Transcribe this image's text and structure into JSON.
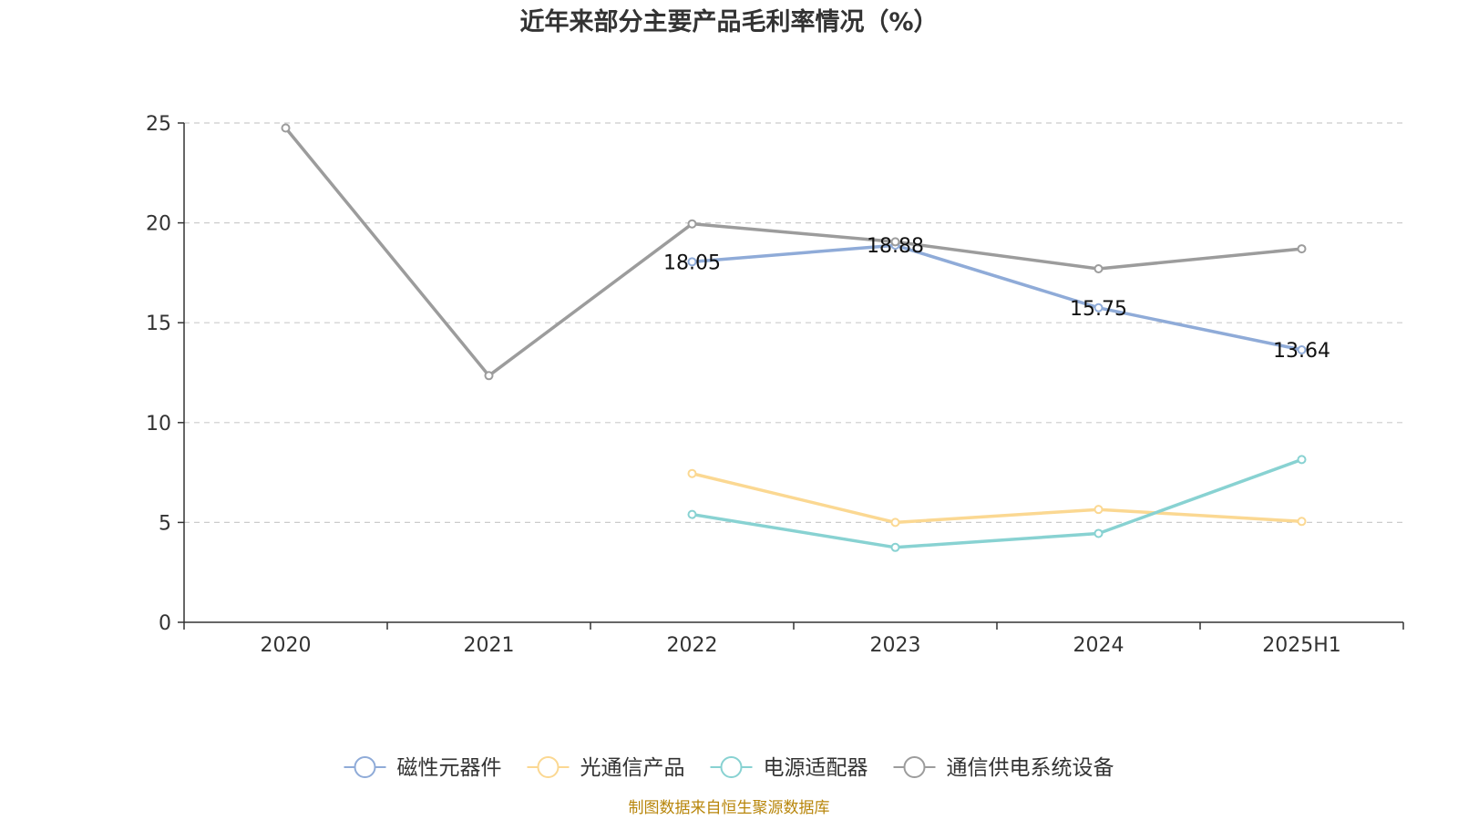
{
  "chart_data": {
    "type": "line",
    "title": "近年来部分主要产品毛利率情况（%）",
    "xlabel": "",
    "ylabel": "",
    "categories": [
      "2020",
      "2021",
      "2022",
      "2023",
      "2024",
      "2025H1"
    ],
    "y_ticks": [
      "0",
      "5",
      "10",
      "15",
      "20",
      "25"
    ],
    "ylim": [
      0,
      25
    ],
    "grid": true,
    "legend_position": "bottom",
    "series": [
      {
        "name": "磁性元器件",
        "color": "#8fabd8",
        "values": [
          null,
          null,
          18.05,
          18.88,
          15.75,
          13.64
        ],
        "data_labels": [
          null,
          null,
          "18.05",
          "18.88",
          "15.75",
          "13.64"
        ]
      },
      {
        "name": "光通信产品",
        "color": "#fbd892",
        "values": [
          null,
          null,
          7.45,
          5.0,
          5.65,
          5.05
        ]
      },
      {
        "name": "电源适配器",
        "color": "#88d2d2",
        "values": [
          null,
          null,
          5.4,
          3.75,
          4.45,
          8.15
        ]
      },
      {
        "name": "通信供电系统设备",
        "color": "#9c9c9c",
        "values": [
          24.75,
          12.35,
          19.95,
          19.05,
          17.7,
          18.7
        ]
      }
    ],
    "source": "制图数据来自恒生聚源数据库"
  }
}
